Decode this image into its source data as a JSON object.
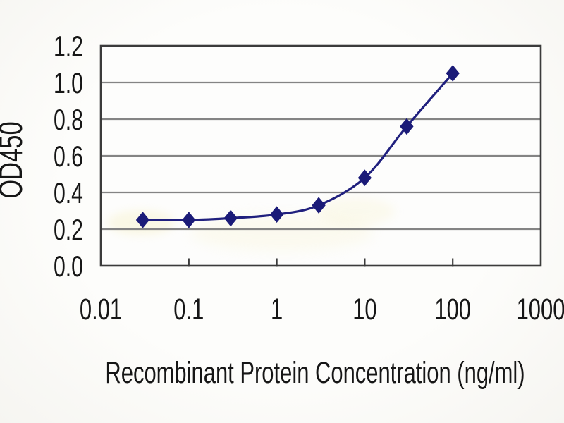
{
  "chart_data": {
    "type": "line",
    "x_scale": "log",
    "x": [
      0.03,
      0.1,
      0.3,
      1,
      3,
      10,
      30,
      100
    ],
    "series": [
      {
        "name": "OD450",
        "values": [
          0.25,
          0.25,
          0.26,
          0.28,
          0.33,
          0.48,
          0.76,
          1.05
        ],
        "marker": "diamond",
        "smoothed": true
      }
    ],
    "title": "",
    "xlabel": "Recombinant Protein Concentration (ng/ml)",
    "ylabel": "OD450",
    "xlim": [
      0.01,
      1000
    ],
    "ylim": [
      0.0,
      1.2
    ],
    "x_tick_values": [
      0.01,
      0.1,
      1,
      10,
      100,
      1000
    ],
    "x_tick_labels": [
      "0.01",
      "0.1",
      "1",
      "10",
      "100",
      "1000"
    ],
    "y_tick_values": [
      0.0,
      0.2,
      0.4,
      0.6,
      0.8,
      1.0,
      1.2
    ],
    "y_tick_labels": [
      "0.0",
      "0.2",
      "0.4",
      "0.6",
      "0.8",
      "1.0",
      "1.2"
    ],
    "grid": "horizontal-only",
    "legend": "none"
  },
  "style": {
    "line_color": "#20207e",
    "marker_color": "#1b1b78",
    "frame_color": "#3b3b3b",
    "grid_color": "#848484",
    "tick_color": "#3b3b3b",
    "text_color": "#161616",
    "plot_fill": "#fdfdfc",
    "smudge_color": "#f5efc2"
  }
}
